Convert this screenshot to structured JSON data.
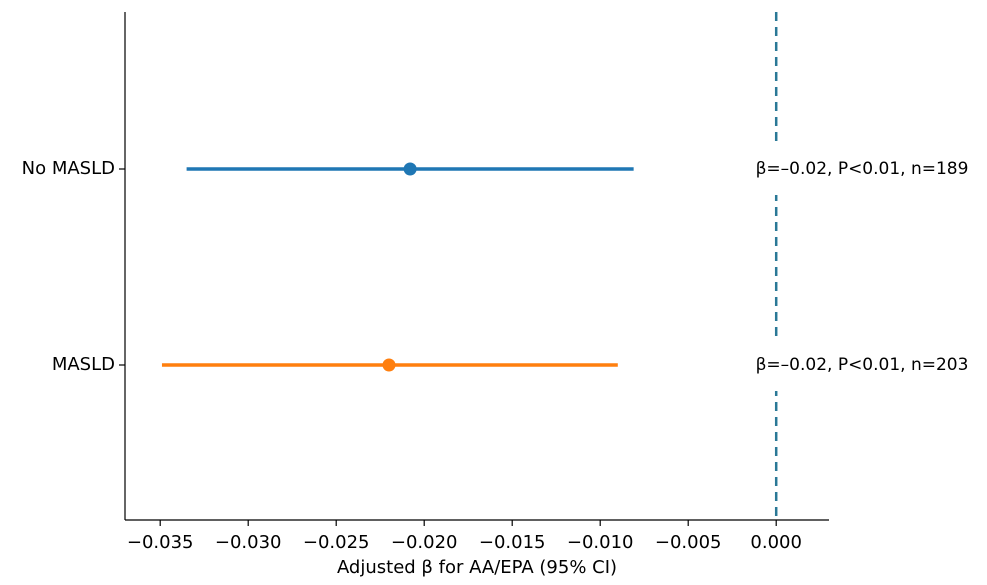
{
  "chart_data": {
    "type": "forest",
    "xlabel": "Adjusted β for AA/EPA (95% CI)",
    "xlim": [
      -0.037,
      0.003
    ],
    "xticks": [
      {
        "value": -0.035,
        "label": "−0.035"
      },
      {
        "value": -0.03,
        "label": "−0.030"
      },
      {
        "value": -0.025,
        "label": "−0.025"
      },
      {
        "value": -0.02,
        "label": "−0.020"
      },
      {
        "value": -0.015,
        "label": "−0.015"
      },
      {
        "value": -0.01,
        "label": "−0.010"
      },
      {
        "value": -0.005,
        "label": "−0.005"
      },
      {
        "value": 0,
        "label": "0.000"
      }
    ],
    "reference_line": 0,
    "reference_color": "#2a7896",
    "series": [
      {
        "name": "No MASLD",
        "color": "#1f77b4",
        "value": -0.0208,
        "lower": -0.0335,
        "upper": -0.0081,
        "annotation": "β=–0.02, P<0.01, n=189"
      },
      {
        "name": "MASLD",
        "color": "#ff7f0e",
        "value": -0.022,
        "lower": -0.0349,
        "upper": -0.009,
        "annotation": "β=–0.02, P<0.01, n=203"
      }
    ]
  }
}
